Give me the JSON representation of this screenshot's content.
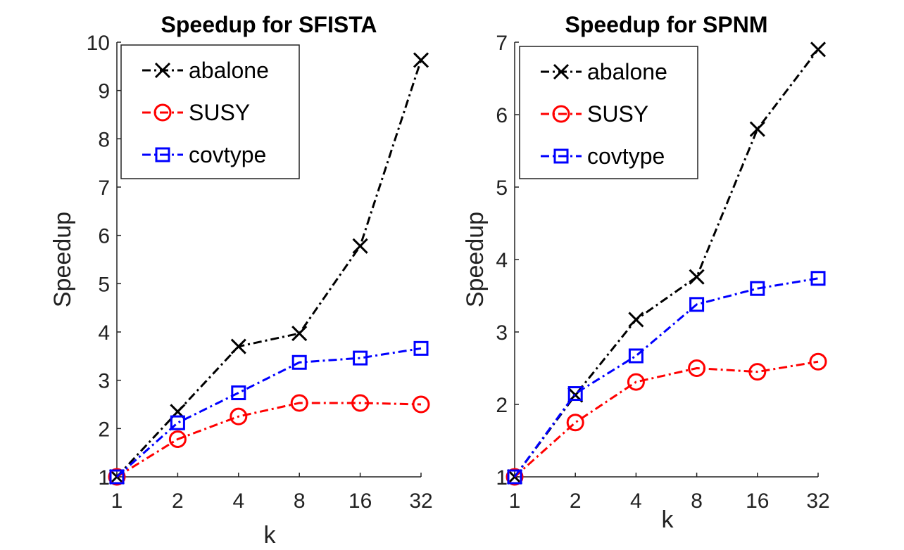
{
  "chart_data": [
    {
      "type": "line",
      "title": "Speedup for SFISTA",
      "xlabel": "k",
      "ylabel": "Speedup",
      "categories": [
        "1",
        "2",
        "4",
        "8",
        "16",
        "32"
      ],
      "ylim": [
        1,
        10
      ],
      "yticks": [
        1,
        2,
        3,
        4,
        5,
        6,
        7,
        8,
        9,
        10
      ],
      "legend": "top-left",
      "grid": false,
      "series": [
        {
          "name": "abalone",
          "color": "#000000",
          "marker": "x",
          "values": [
            1.0,
            2.35,
            3.7,
            3.97,
            5.78,
            9.63
          ]
        },
        {
          "name": "SUSY",
          "color": "#ff0000",
          "marker": "o",
          "values": [
            1.0,
            1.78,
            2.25,
            2.53,
            2.53,
            2.5
          ]
        },
        {
          "name": "covtype",
          "color": "#0000ff",
          "marker": "s",
          "values": [
            1.0,
            2.12,
            2.74,
            3.37,
            3.46,
            3.66
          ]
        }
      ]
    },
    {
      "type": "line",
      "title": "Speedup for SPNM",
      "xlabel": "k",
      "ylabel": "Speedup",
      "categories": [
        "1",
        "2",
        "4",
        "8",
        "16",
        "32"
      ],
      "ylim": [
        1,
        7
      ],
      "yticks": [
        1,
        2,
        3,
        4,
        5,
        6,
        7
      ],
      "legend": "top-left",
      "grid": false,
      "series": [
        {
          "name": "abalone",
          "color": "#000000",
          "marker": "x",
          "values": [
            1.0,
            2.13,
            3.17,
            3.76,
            5.8,
            6.9
          ]
        },
        {
          "name": "SUSY",
          "color": "#ff0000",
          "marker": "o",
          "values": [
            1.0,
            1.75,
            2.31,
            2.5,
            2.45,
            2.59
          ]
        },
        {
          "name": "covtype",
          "color": "#0000ff",
          "marker": "s",
          "values": [
            1.0,
            2.15,
            2.67,
            3.38,
            3.6,
            3.74
          ]
        }
      ]
    }
  ]
}
